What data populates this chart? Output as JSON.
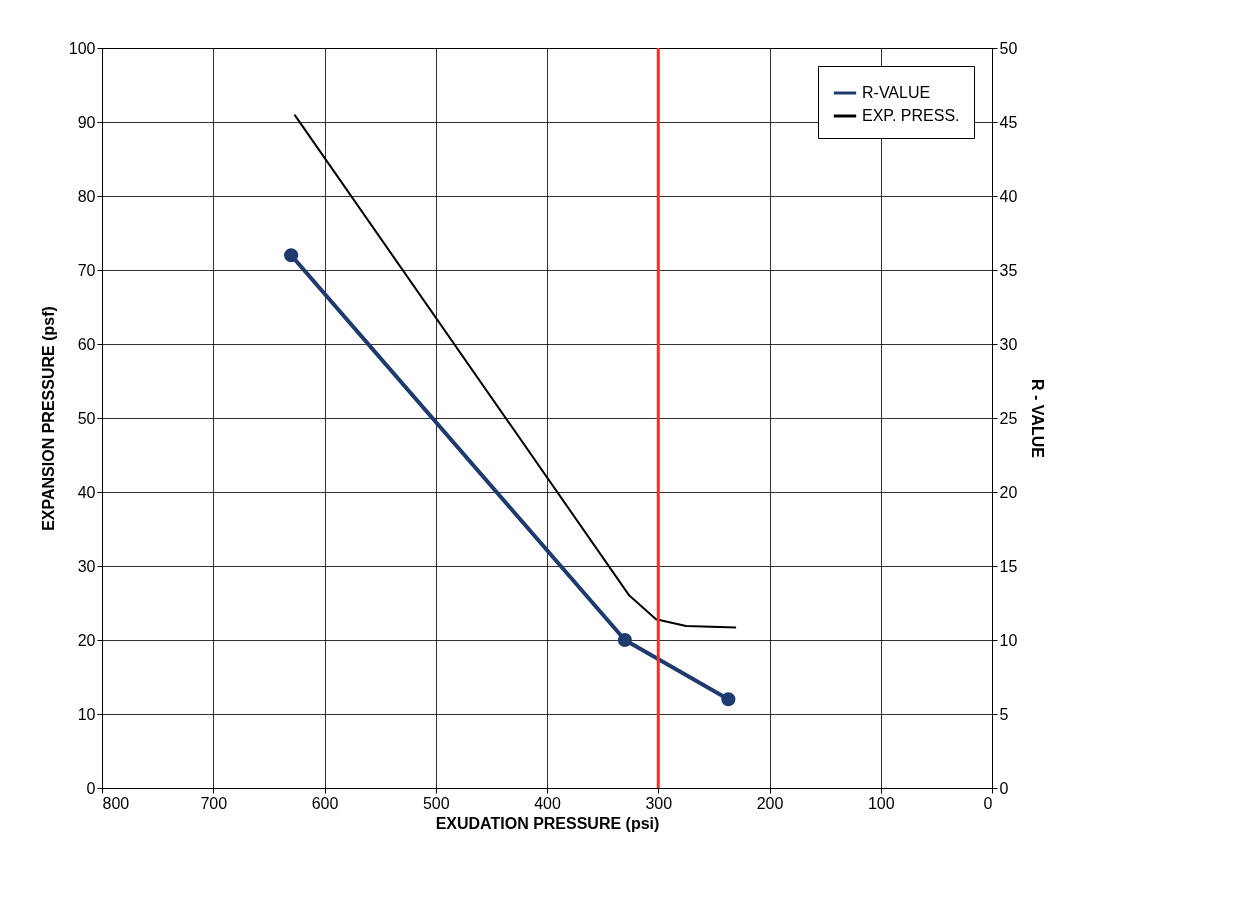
{
  "chart_data": {
    "type": "line",
    "xlabel": "EXUDATION PRESSURE (psi)",
    "ylabel": "EXPANSION PRESSURE (psf)",
    "y2label": "R - VALUE",
    "xlim": [
      800,
      0
    ],
    "xticks": [
      800,
      700,
      600,
      500,
      400,
      300,
      200,
      100,
      0
    ],
    "ylim": [
      0,
      100
    ],
    "yticks": [
      0,
      10,
      20,
      30,
      40,
      50,
      60,
      70,
      80,
      90,
      100
    ],
    "y2lim": [
      0,
      50
    ],
    "y2ticks": [
      0,
      5,
      10,
      15,
      20,
      25,
      30,
      35,
      40,
      45,
      50
    ],
    "grid": true,
    "legend": "top right",
    "series": [
      {
        "name": "R-VALUE",
        "color": "#1f3a6e",
        "axis": "y2",
        "marker": "circle",
        "x": [
          630,
          330,
          237
        ],
        "values": [
          36,
          10,
          6
        ]
      },
      {
        "name": "EXP. PRESS.",
        "color": "#000000",
        "marker": "none",
        "x": [
          627,
          326,
          302,
          275,
          230
        ],
        "values": [
          91,
          26,
          22.8,
          21.9,
          21.7
        ]
      }
    ],
    "ref_lines": [
      {
        "axis": "x",
        "value": 300,
        "color": "#ff2a1a"
      }
    ]
  }
}
